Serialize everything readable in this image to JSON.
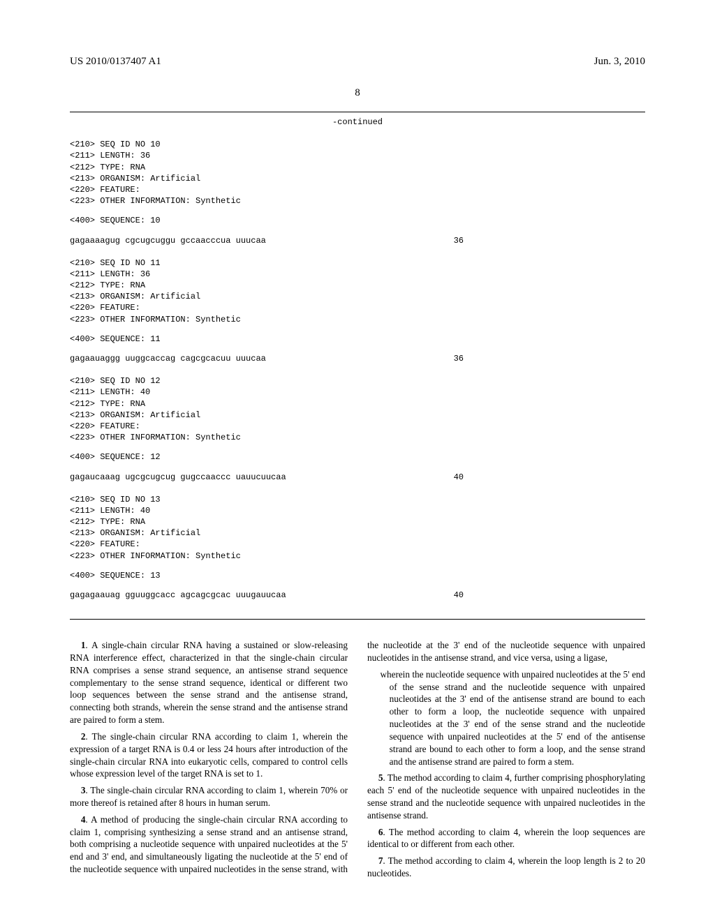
{
  "header": {
    "pub_number": "US 2010/0137407 A1",
    "date": "Jun. 3, 2010"
  },
  "page_number": "8",
  "continued_label": "-continued",
  "sequences": [
    {
      "meta": [
        "<210> SEQ ID NO 10",
        "<211> LENGTH: 36",
        "<212> TYPE: RNA",
        "<213> ORGANISM: Artificial",
        "<220> FEATURE:",
        "<223> OTHER INFORMATION: Synthetic"
      ],
      "seq_label": "<400> SEQUENCE: 10",
      "seq": "gagaaaagug cgcugcuggu gccaacccua uuucaa",
      "len": "36"
    },
    {
      "meta": [
        "<210> SEQ ID NO 11",
        "<211> LENGTH: 36",
        "<212> TYPE: RNA",
        "<213> ORGANISM: Artificial",
        "<220> FEATURE:",
        "<223> OTHER INFORMATION: Synthetic"
      ],
      "seq_label": "<400> SEQUENCE: 11",
      "seq": "gagaauaggg uuggcaccag cagcgcacuu uuucaa",
      "len": "36"
    },
    {
      "meta": [
        "<210> SEQ ID NO 12",
        "<211> LENGTH: 40",
        "<212> TYPE: RNA",
        "<213> ORGANISM: Artificial",
        "<220> FEATURE:",
        "<223> OTHER INFORMATION: Synthetic"
      ],
      "seq_label": "<400> SEQUENCE: 12",
      "seq": "gagaucaaag ugcgcugcug gugccaaccc uauucuucaa",
      "len": "40"
    },
    {
      "meta": [
        "<210> SEQ ID NO 13",
        "<211> LENGTH: 40",
        "<212> TYPE: RNA",
        "<213> ORGANISM: Artificial",
        "<220> FEATURE:",
        "<223> OTHER INFORMATION: Synthetic"
      ],
      "seq_label": "<400> SEQUENCE: 13",
      "seq": "gagagaauag gguuggcacc agcagcgcac uuugauucaa",
      "len": "40"
    }
  ],
  "claims": [
    {
      "num": "1",
      "text": ". A single-chain circular RNA having a sustained or slow-releasing RNA interference effect, characterized in that the single-chain circular RNA comprises a sense strand sequence, an antisense strand sequence complementary to the sense strand sequence, identical or different two loop sequences between the sense strand and the antisense strand, connecting both strands, wherein the sense strand and the antisense strand are paired to form a stem."
    },
    {
      "num": "2",
      "text": ". The single-chain circular RNA according to claim 1, wherein the expression of a target RNA is 0.4 or less 24 hours after introduction of the single-chain circular RNA into eukaryotic cells, compared to control cells whose expression level of the target RNA is set to 1."
    },
    {
      "num": "3",
      "text": ". The single-chain circular RNA according to claim 1, wherein 70% or more thereof is retained after 8 hours in human serum."
    },
    {
      "num": "4",
      "text": ". A method of producing the single-chain circular RNA according to claim 1, comprising synthesizing a sense strand and an antisense strand, both comprising a nucleotide sequence with unpaired nucleotides at the 5' end and 3' end, and simultaneously ligating the nucleotide at the 5' end of the nucleotide sequence with unpaired nucleotides in the sense strand, with the nucleotide at the 3' end of the nucleotide sequence with unpaired nucleotides in the antisense strand, and vice versa, using a ligase,"
    }
  ],
  "sub_claim": "wherein the nucleotide sequence with unpaired nucleotides at the 5' end of the sense strand and the nucleotide sequence with unpaired nucleotides at the 3' end of the antisense strand are bound to each other to form a loop, the nucleotide sequence with unpaired nucleotides at the 3' end of the sense strand and the nucleotide sequence with unpaired nucleotides at the 5' end of the antisense strand are bound to each other to form a loop, and the sense strand and the antisense strand are paired to form a stem.",
  "claims2": [
    {
      "num": "5",
      "text": ". The method according to claim 4, further comprising phosphorylating each 5' end of the nucleotide sequence with unpaired nucleotides in the sense strand and the nucleotide sequence with unpaired nucleotides in the antisense strand."
    },
    {
      "num": "6",
      "text": ". The method according to claim 4, wherein the loop sequences are identical to or different from each other."
    },
    {
      "num": "7",
      "text": ". The method according to claim 4, wherein the loop length is 2 to 20 nucleotides."
    }
  ]
}
